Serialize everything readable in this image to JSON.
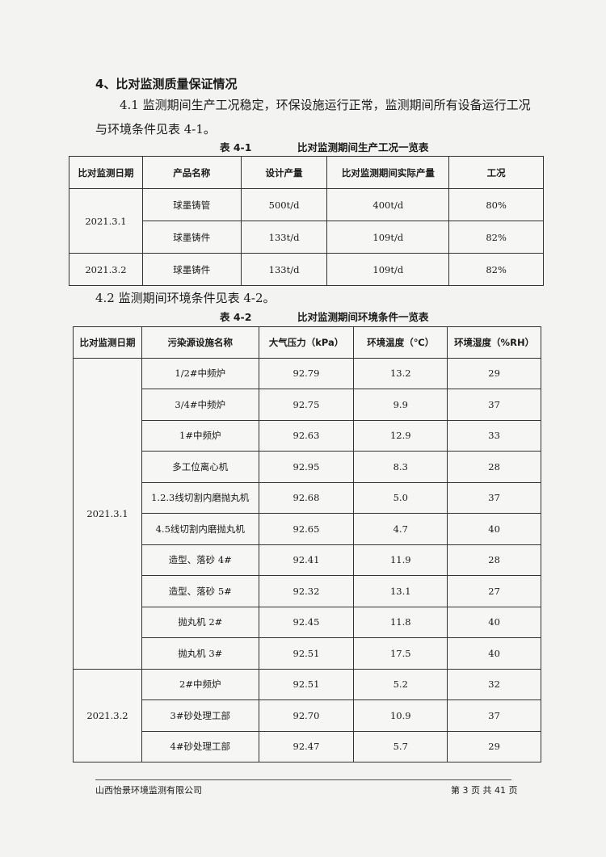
{
  "section_title": "4、比对监测质量保证情况",
  "para1_line1": "4.1 监测期间生产工况稳定，环保设施运行正常，监测期间所有设备运行工况",
  "para1_line2": "与环境条件见表 4-1。",
  "table1": {
    "caption_no": "表 4-1",
    "caption_title": "比对监测期间生产工况一览表",
    "headers": [
      "比对监测日期",
      "产品名称",
      "设计产量",
      "比对监测期间实际产量",
      "工况"
    ],
    "rows": [
      {
        "date": "2021.3.1",
        "product": "球墨铸管",
        "design": "500t/d",
        "actual": "400t/d",
        "load": "80%"
      },
      {
        "date": "",
        "product": "球墨铸件",
        "design": "133t/d",
        "actual": "109t/d",
        "load": "82%"
      },
      {
        "date": "2021.3.2",
        "product": "球墨铸件",
        "design": "133t/d",
        "actual": "109t/d",
        "load": "82%"
      }
    ]
  },
  "para2": "4.2 监测期间环境条件见表 4-2。",
  "table2": {
    "caption_no": "表 4-2",
    "caption_title": "比对监测期间环境条件一览表",
    "headers": [
      "比对监测日期",
      "污染源设施名称",
      "大气压力（kPa）",
      "环境温度（℃）",
      "环境湿度（%RH）"
    ],
    "dates": [
      "2021.3.1",
      "2021.3.2"
    ],
    "rows": [
      {
        "name": "1/2#中频炉",
        "pressure": "92.79",
        "temp": "13.2",
        "humidity": "29"
      },
      {
        "name": "3/4#中频炉",
        "pressure": "92.75",
        "temp": "9.9",
        "humidity": "37"
      },
      {
        "name": "1#中频炉",
        "pressure": "92.63",
        "temp": "12.9",
        "humidity": "33"
      },
      {
        "name": "多工位离心机",
        "pressure": "92.95",
        "temp": "8.3",
        "humidity": "28"
      },
      {
        "name": "1.2.3线切割内磨抛丸机",
        "pressure": "92.68",
        "temp": "5.0",
        "humidity": "37"
      },
      {
        "name": "4.5线切割内磨抛丸机",
        "pressure": "92.65",
        "temp": "4.7",
        "humidity": "40"
      },
      {
        "name": "造型、落砂 4#",
        "pressure": "92.41",
        "temp": "11.9",
        "humidity": "28"
      },
      {
        "name": "造型、落砂 5#",
        "pressure": "92.32",
        "temp": "13.1",
        "humidity": "27"
      },
      {
        "name": "抛丸机 2#",
        "pressure": "92.45",
        "temp": "11.8",
        "humidity": "40"
      },
      {
        "name": "抛丸机 3#",
        "pressure": "92.51",
        "temp": "17.5",
        "humidity": "40"
      },
      {
        "name": "2#中频炉",
        "pressure": "92.51",
        "temp": "5.2",
        "humidity": "32"
      },
      {
        "name": "3#砂处理工部",
        "pressure": "92.70",
        "temp": "10.9",
        "humidity": "37"
      },
      {
        "name": "4#砂处理工部",
        "pressure": "92.47",
        "temp": "5.7",
        "humidity": "29"
      }
    ]
  },
  "footer": {
    "company": "山西怡景环境监测有限公司",
    "page": "第 3 页 共 41 页"
  }
}
